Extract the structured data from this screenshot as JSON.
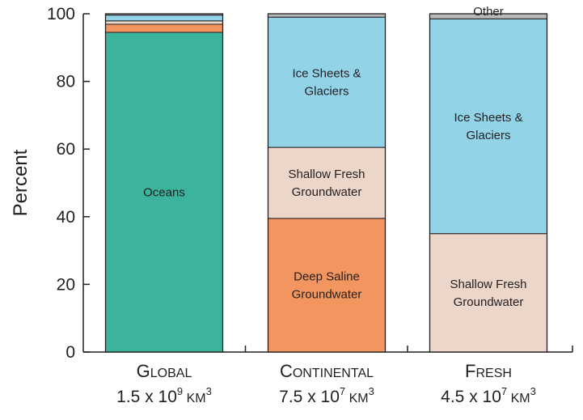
{
  "chart_data": {
    "type": "bar",
    "stacked": true,
    "ylabel": "Percent",
    "ylim": [
      0,
      100
    ],
    "yticks": [
      0,
      20,
      40,
      60,
      80,
      100
    ],
    "grid": false,
    "categories": [
      {
        "name": "GLOBAL",
        "volume": "1.5 x 10",
        "exp": "9",
        "unit": "KM",
        "unit_exp": "3"
      },
      {
        "name": "CONTINENTAL",
        "volume": "7.5 x 10",
        "exp": "7",
        "unit": "KM",
        "unit_exp": "3"
      },
      {
        "name": "FRESH",
        "volume": "4.5 x 10",
        "exp": "7",
        "unit": "KM",
        "unit_exp": "3"
      }
    ],
    "bars": [
      {
        "category": "GLOBAL",
        "segments": [
          {
            "label": "Oceans",
            "value": 94.5,
            "color": "#3bb39d"
          },
          {
            "label": "",
            "value": 2.4,
            "color": "#f2955f"
          },
          {
            "label": "",
            "value": 1.0,
            "color": "#ecd5c9"
          },
          {
            "label": "",
            "value": 1.7,
            "color": "#93d3e7"
          },
          {
            "label": "",
            "value": 0.4,
            "color": "#b7b9bb"
          }
        ]
      },
      {
        "category": "CONTINENTAL",
        "segments": [
          {
            "label": "Deep Saline\nGroundwater",
            "value": 39.5,
            "color": "#f2955f"
          },
          {
            "label": "Shallow Fresh\nGroundwater",
            "value": 21.0,
            "color": "#ecd5c9"
          },
          {
            "label": "Ice Sheets &\nGlaciers",
            "value": 38.5,
            "color": "#93d3e7"
          },
          {
            "label": "",
            "value": 1.0,
            "color": "#b7b9bb"
          }
        ]
      },
      {
        "category": "FRESH",
        "segments": [
          {
            "label": "Shallow Fresh\nGroundwater",
            "value": 35.0,
            "color": "#ecd5c9"
          },
          {
            "label": "Ice Sheets &\nGlaciers",
            "value": 63.5,
            "color": "#93d3e7"
          },
          {
            "label": "Other",
            "value": 1.5,
            "color": "#b7b9bb",
            "label_above": true
          }
        ]
      }
    ]
  }
}
